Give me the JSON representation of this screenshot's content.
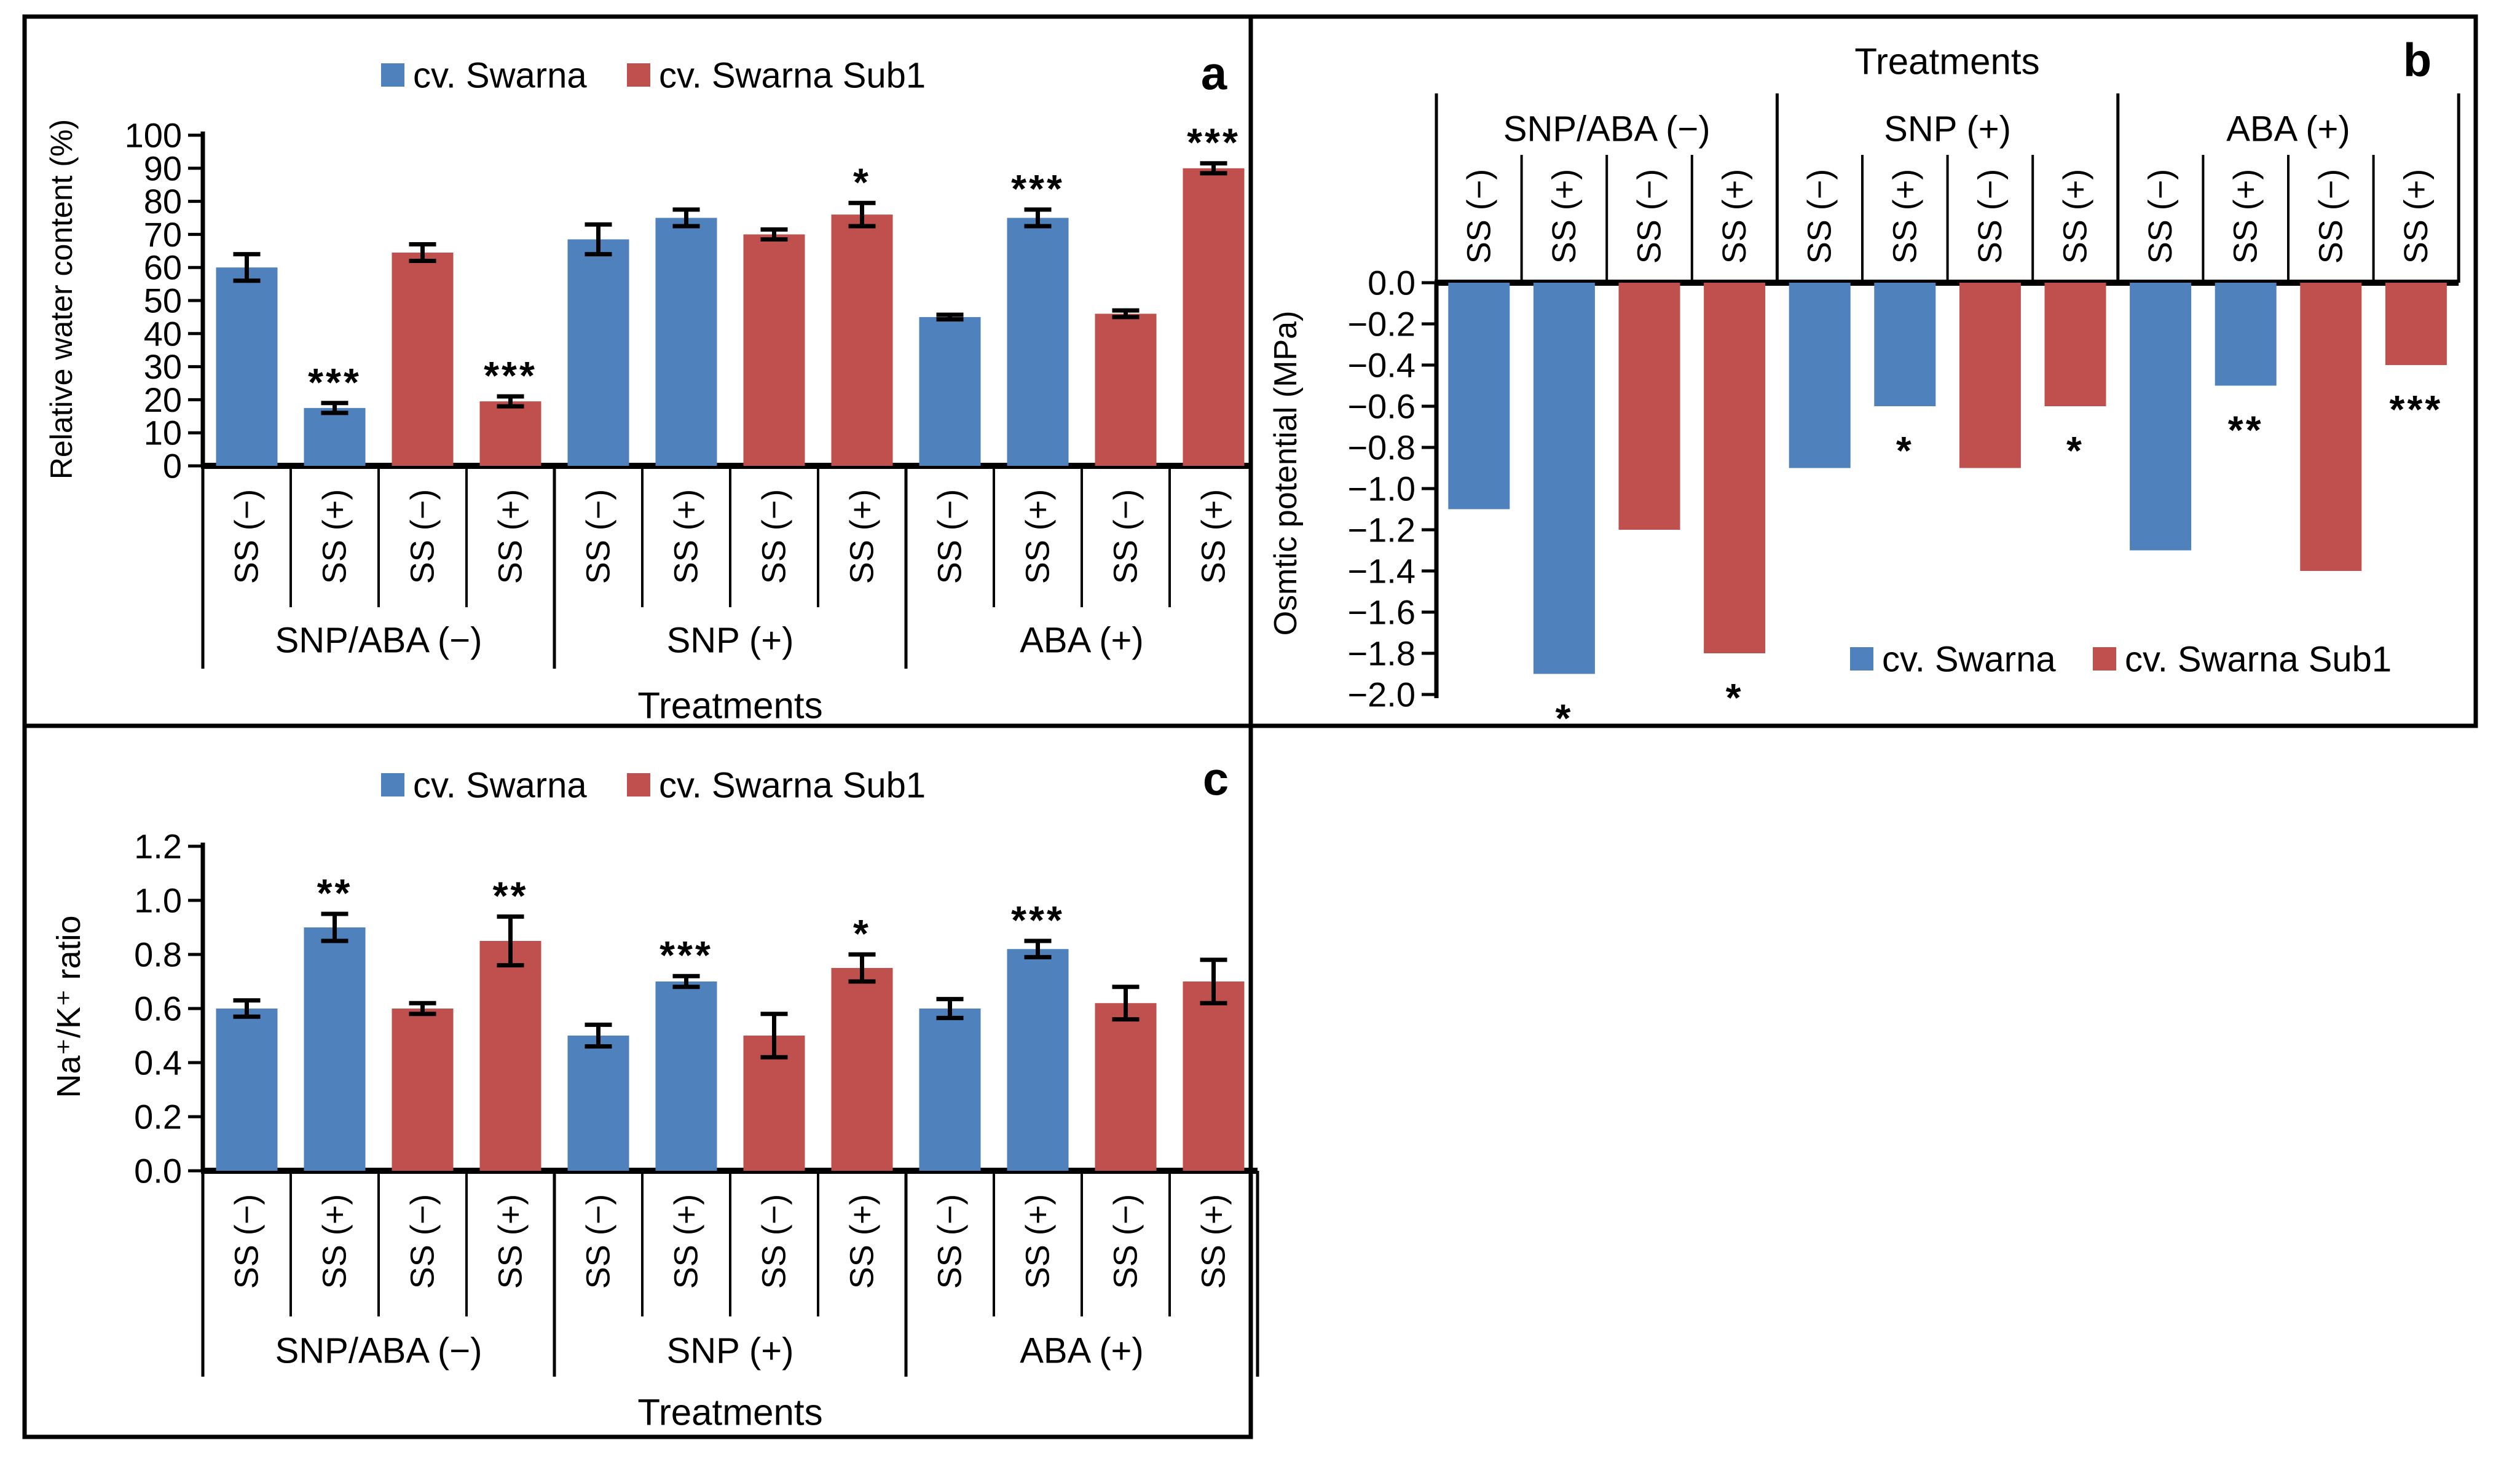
{
  "figure": {
    "background": "#FFFFFF",
    "border_color": "#000000",
    "letter_color": "#0000CC",
    "series_colors": {
      "cv. Swarna": "#4F81BD",
      "cv. Swarna Sub1": "#C0504D"
    },
    "panel_letters": [
      "a",
      "b",
      "c"
    ]
  },
  "chart_data": [
    {
      "panel": "a",
      "type": "bar",
      "orientation": "up",
      "letter": "a",
      "ylabel": "Relative water content (%)",
      "xlabel": "Treatments",
      "ylim": [
        0,
        100
      ],
      "ytick_labels": [
        "100",
        "90",
        "80",
        "70",
        "60",
        "50",
        "40",
        "30",
        "20",
        "10",
        "0"
      ],
      "grid": false,
      "legend_position": "top-center",
      "legend": [
        "cv. Swarna",
        "cv. Swarna Sub1"
      ],
      "groups": [
        "SNP/ABA (−)",
        "SNP (+)",
        "ABA (+)"
      ],
      "bars": [
        {
          "group": "SNP/ABA (−)",
          "series": "cv. Swarna",
          "label": "SS (−)",
          "value": 60,
          "error": 4,
          "sig": ""
        },
        {
          "group": "SNP/ABA (−)",
          "series": "cv. Swarna",
          "label": "SS (+)",
          "value": 17.5,
          "error": 1.5,
          "sig": "***"
        },
        {
          "group": "SNP/ABA (−)",
          "series": "cv. Swarna Sub1",
          "label": "SS (−)",
          "value": 64.5,
          "error": 2.5,
          "sig": ""
        },
        {
          "group": "SNP/ABA (−)",
          "series": "cv. Swarna Sub1",
          "label": "SS (+)",
          "value": 19.5,
          "error": 1.5,
          "sig": "***"
        },
        {
          "group": "SNP (+)",
          "series": "cv. Swarna",
          "label": "SS (−)",
          "value": 68.5,
          "error": 4.5,
          "sig": ""
        },
        {
          "group": "SNP (+)",
          "series": "cv. Swarna",
          "label": "SS (+)",
          "value": 75,
          "error": 2.5,
          "sig": ""
        },
        {
          "group": "SNP (+)",
          "series": "cv. Swarna Sub1",
          "label": "SS (−)",
          "value": 70,
          "error": 1.5,
          "sig": ""
        },
        {
          "group": "SNP (+)",
          "series": "cv. Swarna Sub1",
          "label": "SS (+)",
          "value": 76,
          "error": 3.5,
          "sig": "*"
        },
        {
          "group": "ABA (+)",
          "series": "cv. Swarna",
          "label": "SS (−)",
          "value": 45,
          "error": 0.7,
          "sig": ""
        },
        {
          "group": "ABA (+)",
          "series": "cv. Swarna",
          "label": "SS (+)",
          "value": 75,
          "error": 2.5,
          "sig": "***"
        },
        {
          "group": "ABA (+)",
          "series": "cv. Swarna Sub1",
          "label": "SS (−)",
          "value": 46,
          "error": 1,
          "sig": ""
        },
        {
          "group": "ABA (+)",
          "series": "cv. Swarna Sub1",
          "label": "SS (+)",
          "value": 90,
          "error": 1.5,
          "sig": "***"
        }
      ]
    },
    {
      "panel": "b",
      "type": "bar",
      "orientation": "down",
      "letter": "b",
      "title": "Treatments",
      "ylabel": "Osmtic potential (MPa)",
      "xlabel": "Treatments",
      "ylim": [
        -2.0,
        0.0
      ],
      "ytick_labels": [
        "0.0",
        "−0.2",
        "−0.4",
        "−0.6",
        "−0.8",
        "−1.0",
        "−1.2",
        "−1.4",
        "−1.6",
        "−1.8",
        "−2.0"
      ],
      "grid": false,
      "legend_position": "bottom-right-inside",
      "legend": [
        "cv. Swarna",
        "cv. Swarna Sub1"
      ],
      "groups": [
        "SNP/ABA (−)",
        "SNP (+)",
        "ABA (+)"
      ],
      "bars": [
        {
          "group": "SNP/ABA (−)",
          "series": "cv. Swarna",
          "label": "SS (−)",
          "value": -1.1,
          "error": 0,
          "sig": ""
        },
        {
          "group": "SNP/ABA (−)",
          "series": "cv. Swarna",
          "label": "SS (+)",
          "value": -1.9,
          "error": 0,
          "sig": "*"
        },
        {
          "group": "SNP/ABA (−)",
          "series": "cv. Swarna Sub1",
          "label": "SS (−)",
          "value": -1.2,
          "error": 0,
          "sig": ""
        },
        {
          "group": "SNP/ABA (−)",
          "series": "cv. Swarna Sub1",
          "label": "SS (+)",
          "value": -1.8,
          "error": 0,
          "sig": "*"
        },
        {
          "group": "SNP (+)",
          "series": "cv. Swarna",
          "label": "SS (−)",
          "value": -0.9,
          "error": 0,
          "sig": ""
        },
        {
          "group": "SNP (+)",
          "series": "cv. Swarna",
          "label": "SS (+)",
          "value": -0.6,
          "error": 0,
          "sig": "*"
        },
        {
          "group": "SNP (+)",
          "series": "cv. Swarna Sub1",
          "label": "SS (−)",
          "value": -0.9,
          "error": 0,
          "sig": ""
        },
        {
          "group": "SNP (+)",
          "series": "cv. Swarna Sub1",
          "label": "SS (+)",
          "value": -0.6,
          "error": 0,
          "sig": "*"
        },
        {
          "group": "ABA (+)",
          "series": "cv. Swarna",
          "label": "SS (−)",
          "value": -1.3,
          "error": 0,
          "sig": ""
        },
        {
          "group": "ABA (+)",
          "series": "cv. Swarna",
          "label": "SS (+)",
          "value": -0.5,
          "error": 0,
          "sig": "**"
        },
        {
          "group": "ABA (+)",
          "series": "cv. Swarna Sub1",
          "label": "SS (−)",
          "value": -1.4,
          "error": 0,
          "sig": ""
        },
        {
          "group": "ABA (+)",
          "series": "cv. Swarna Sub1",
          "label": "SS (+)",
          "value": -0.4,
          "error": 0,
          "sig": "***"
        }
      ]
    },
    {
      "panel": "c",
      "type": "bar",
      "orientation": "up",
      "letter": "c",
      "ylabel": "Na⁺/K⁺ ratio",
      "xlabel": "Treatments",
      "ylim": [
        0,
        1.2
      ],
      "ytick_labels": [
        "1.2",
        "1.0",
        "0.8",
        "0.6",
        "0.4",
        "0.2",
        "0.0"
      ],
      "grid": false,
      "legend_position": "top-center",
      "legend": [
        "cv. Swarna",
        "cv. Swarna Sub1"
      ],
      "groups": [
        "SNP/ABA (−)",
        "SNP (+)",
        "ABA (+)"
      ],
      "bars": [
        {
          "group": "SNP/ABA (−)",
          "series": "cv. Swarna",
          "label": "SS (−)",
          "value": 0.6,
          "error": 0.03,
          "sig": ""
        },
        {
          "group": "SNP/ABA (−)",
          "series": "cv. Swarna",
          "label": "SS (+)",
          "value": 0.9,
          "error": 0.05,
          "sig": "**"
        },
        {
          "group": "SNP/ABA (−)",
          "series": "cv. Swarna Sub1",
          "label": "SS (−)",
          "value": 0.6,
          "error": 0.02,
          "sig": ""
        },
        {
          "group": "SNP/ABA (−)",
          "series": "cv. Swarna Sub1",
          "label": "SS (+)",
          "value": 0.85,
          "error": 0.09,
          "sig": "**"
        },
        {
          "group": "SNP (+)",
          "series": "cv. Swarna",
          "label": "SS (−)",
          "value": 0.5,
          "error": 0.04,
          "sig": ""
        },
        {
          "group": "SNP (+)",
          "series": "cv. Swarna",
          "label": "SS (+)",
          "value": 0.7,
          "error": 0.02,
          "sig": "***"
        },
        {
          "group": "SNP (+)",
          "series": "cv. Swarna Sub1",
          "label": "SS (−)",
          "value": 0.5,
          "error": 0.08,
          "sig": ""
        },
        {
          "group": "SNP (+)",
          "series": "cv. Swarna Sub1",
          "label": "SS (+)",
          "value": 0.75,
          "error": 0.05,
          "sig": "*"
        },
        {
          "group": "ABA (+)",
          "series": "cv. Swarna",
          "label": "SS (−)",
          "value": 0.6,
          "error": 0.035,
          "sig": ""
        },
        {
          "group": "ABA (+)",
          "series": "cv. Swarna",
          "label": "SS (+)",
          "value": 0.82,
          "error": 0.03,
          "sig": "***"
        },
        {
          "group": "ABA (+)",
          "series": "cv. Swarna Sub1",
          "label": "SS (−)",
          "value": 0.62,
          "error": 0.06,
          "sig": ""
        },
        {
          "group": "ABA (+)",
          "series": "cv. Swarna Sub1",
          "label": "SS (+)",
          "value": 0.7,
          "error": 0.08,
          "sig": ""
        }
      ]
    }
  ]
}
